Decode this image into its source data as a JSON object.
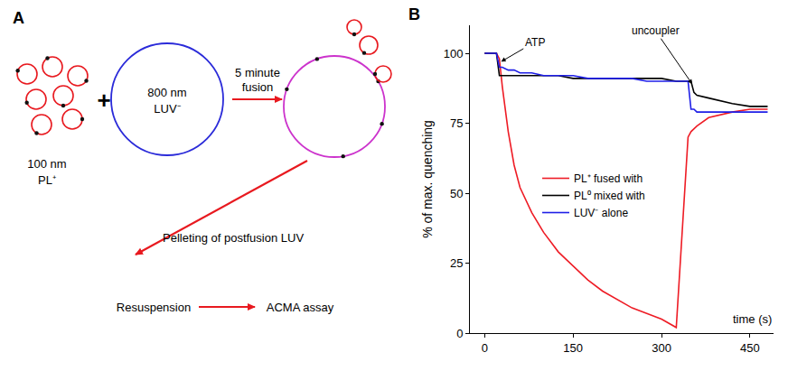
{
  "diagram": {
    "panel_label": "A",
    "small_vesicles": {
      "size": "100 nm",
      "label": "PL⁺"
    },
    "operator": "+",
    "large_vesicle": {
      "size": "800 nm",
      "label": "LUV⁻"
    },
    "fusion_step": [
      "5 minute",
      "fusion"
    ],
    "pelleting_step": "Pelleting of postfusion LUV",
    "resuspension_step": "Resuspension",
    "assay_step": "ACMA assay"
  },
  "chart_data": {
    "type": "line",
    "panel_label": "B",
    "y_label": "% of max. quenching",
    "x_label": "time (s)",
    "xlim": [
      -25,
      490
    ],
    "xticks": [
      0,
      150,
      300,
      450
    ],
    "ylim": [
      0,
      110
    ],
    "yticks": [
      0,
      25,
      50,
      75,
      100
    ],
    "grid": false,
    "legend": "center",
    "x": [
      0,
      10,
      20,
      25,
      30,
      40,
      50,
      60,
      80,
      100,
      125,
      150,
      175,
      200,
      225,
      250,
      275,
      300,
      325,
      345,
      350,
      355,
      360,
      380,
      400,
      420,
      450,
      480
    ],
    "series": [
      {
        "name": "PL⁺ fused with",
        "color": "#ee1c25",
        "values": [
          100,
          100,
          100,
          98,
          88,
          72,
          60,
          52,
          43,
          36,
          29,
          24,
          19,
          15,
          12,
          9,
          7,
          5,
          2,
          70,
          72,
          73,
          74,
          77,
          78,
          79,
          80,
          80
        ]
      },
      {
        "name": "PL⁰ mixed with",
        "color": "#000000",
        "values": [
          100,
          100,
          100,
          92,
          92,
          92,
          92,
          92,
          92,
          92,
          92,
          91,
          91,
          91,
          91,
          91,
          91,
          91,
          90,
          90,
          90,
          86,
          85,
          84,
          83,
          82,
          81,
          81
        ]
      },
      {
        "name": "LUV⁻ alone",
        "color": "#1e1ee6",
        "values": [
          100,
          100,
          100,
          95,
          95,
          94,
          94,
          93,
          93,
          92,
          92,
          92,
          91,
          91,
          91,
          91,
          90,
          90,
          90,
          90,
          80,
          80,
          79,
          79,
          79,
          79,
          79,
          79
        ]
      }
    ],
    "annotations": [
      {
        "text": "ATP",
        "x": 28,
        "y": 97,
        "text_x": 85,
        "text_y": 104
      },
      {
        "text": "uncoupler",
        "x": 352,
        "y": 89,
        "text_x": 290,
        "text_y": 108
      }
    ]
  }
}
